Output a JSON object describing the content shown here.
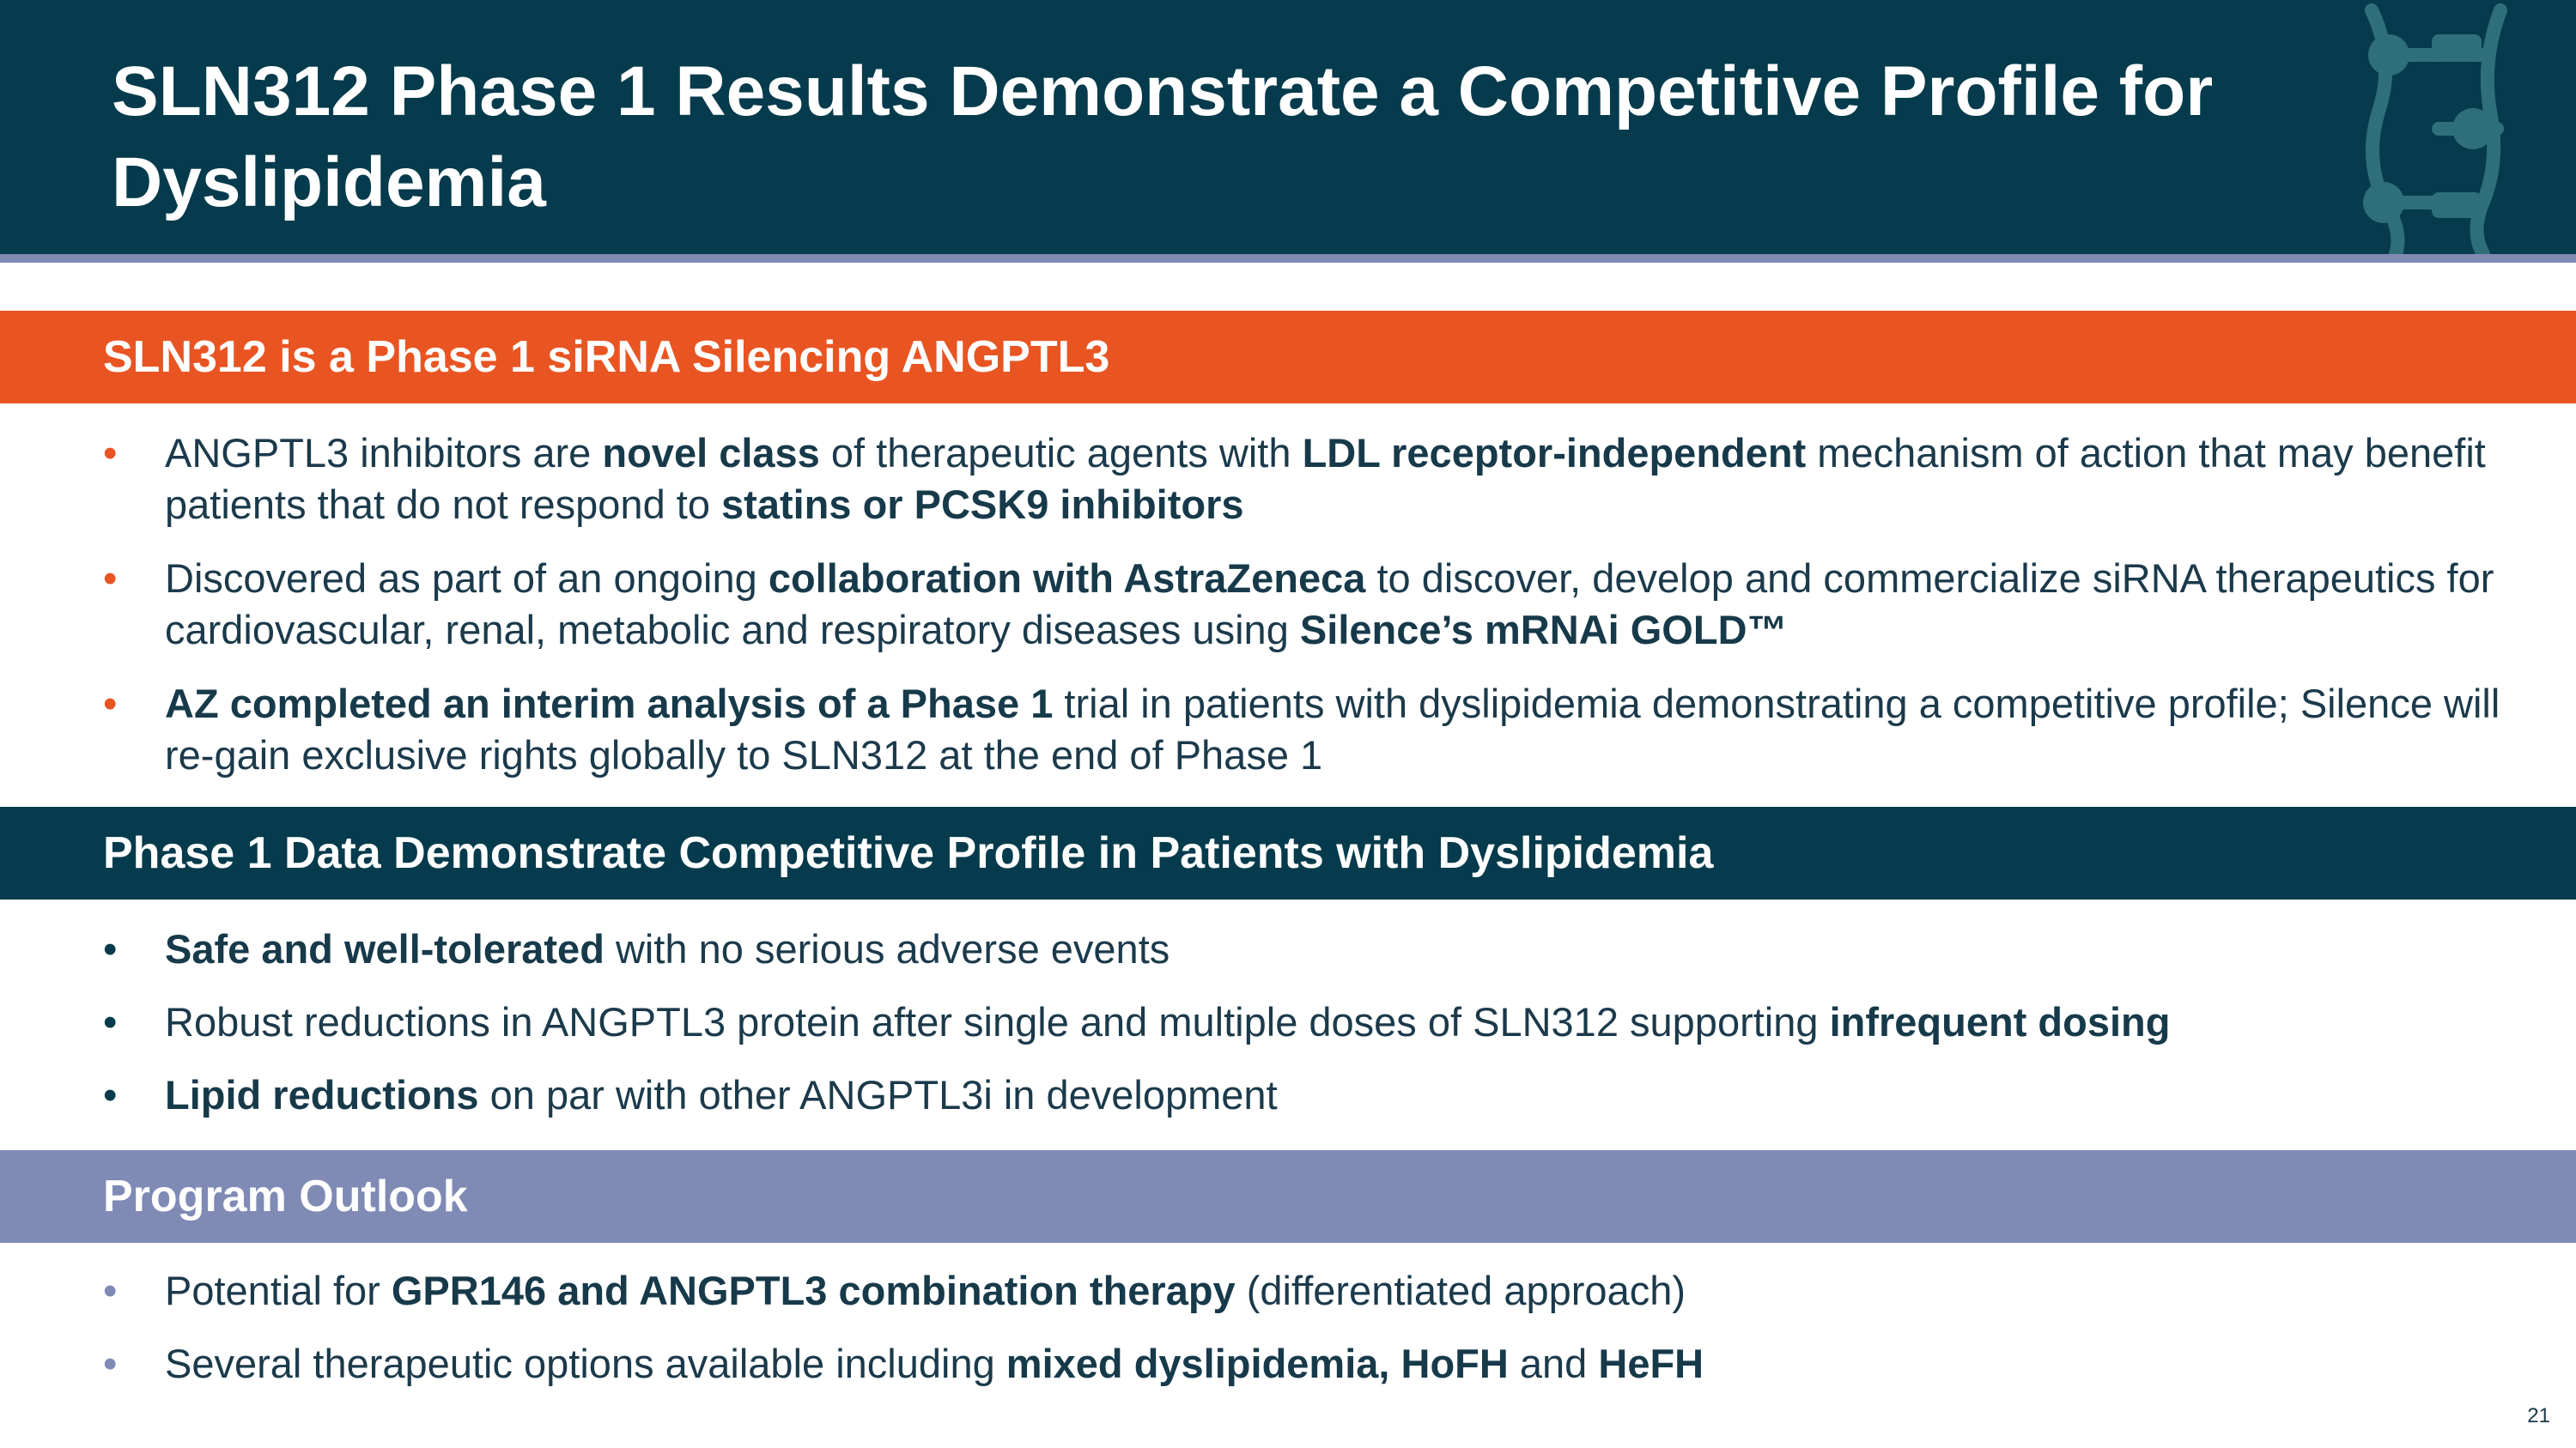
{
  "title": "SLN312 Phase 1 Results Demonstrate a Competitive Profile for Dyslipidemia",
  "colors": {
    "header": "#053b4c",
    "orange": "#e95522",
    "lavender": "#7f8ab5",
    "text": "#1b3a4b"
  },
  "logo_icon": "molecule-strand-icon",
  "sections": [
    {
      "heading": "SLN312 is a Phase 1 siRNA Silencing ANGPTL3",
      "bullets": [
        {
          "t1": "ANGPTL3 inhibitors are ",
          "b1": "novel class",
          "t2": " of therapeutic agents with ",
          "b2": "LDL receptor-independent",
          "t3": " mechanism of action that may benefit patients that do not respond to ",
          "b3": "statins or PCSK9 inhibitors"
        },
        {
          "t1": "Discovered as part of an ongoing ",
          "b1": "collaboration with AstraZeneca",
          "t2": " to discover, develop and commercialize siRNA therapeutics for cardiovascular, renal, metabolic and respiratory diseases using ",
          "b2": "Silence’s mRNAi GOLD™"
        },
        {
          "b1": "AZ completed an interim analysis of a Phase 1",
          "t1": " trial in patients with dyslipidemia demonstrating a competitive profile; Silence will re-gain exclusive rights globally to SLN312 at the end of Phase 1"
        }
      ]
    },
    {
      "heading": "Phase 1 Data Demonstrate Competitive Profile in Patients with Dyslipidemia",
      "bullets": [
        {
          "b1": "Safe and well-tolerated",
          "t1": " with no serious adverse events"
        },
        {
          "t1": "Robust reductions in ANGPTL3 protein after single and multiple doses of SLN312 supporting ",
          "b1": "infrequent dosing"
        },
        {
          "b1": "Lipid reductions",
          "t1": " on par with other ANGPTL3i in development"
        }
      ]
    },
    {
      "heading": "Program Outlook",
      "bullets": [
        {
          "t1": "Potential for ",
          "b1": "GPR146 and ANGPTL3 combination therapy",
          "t2": " (differentiated approach)"
        },
        {
          "t1": "Several therapeutic options available including ",
          "b1": "mixed dyslipidemia, HoFH",
          "t2": " and ",
          "b2": "HeFH"
        }
      ]
    }
  ],
  "bullet_char": "•",
  "page_number": "21"
}
